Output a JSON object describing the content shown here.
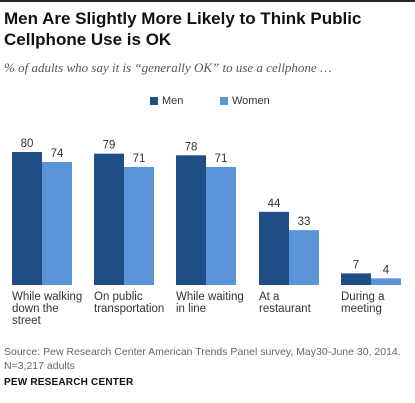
{
  "title": "Men Are Slightly More Likely to Think Public Cellphone Use is OK",
  "subtitle": "% of adults who say it is “generally OK” to use a cellphone …",
  "source": "Source: Pew Research Center American Trends Panel survey, May30-June 30, 2014. N=3,217 adults",
  "brand": "PEW RESEARCH CENTER",
  "colors": {
    "men": "#1f4e87",
    "women": "#5b93d8"
  },
  "chart_data": {
    "type": "bar",
    "categories": [
      [
        "While walking",
        "down the",
        "street"
      ],
      [
        "On public",
        "transportation"
      ],
      [
        "While waiting",
        "in line"
      ],
      [
        "At a",
        "restaurant"
      ],
      [
        "During a",
        "meeting"
      ]
    ],
    "series": [
      {
        "name": "Men",
        "values": [
          80,
          79,
          78,
          44,
          7
        ]
      },
      {
        "name": "Women",
        "values": [
          74,
          71,
          71,
          33,
          4
        ]
      }
    ],
    "ylim": [
      0,
      80
    ],
    "legend": "top"
  }
}
